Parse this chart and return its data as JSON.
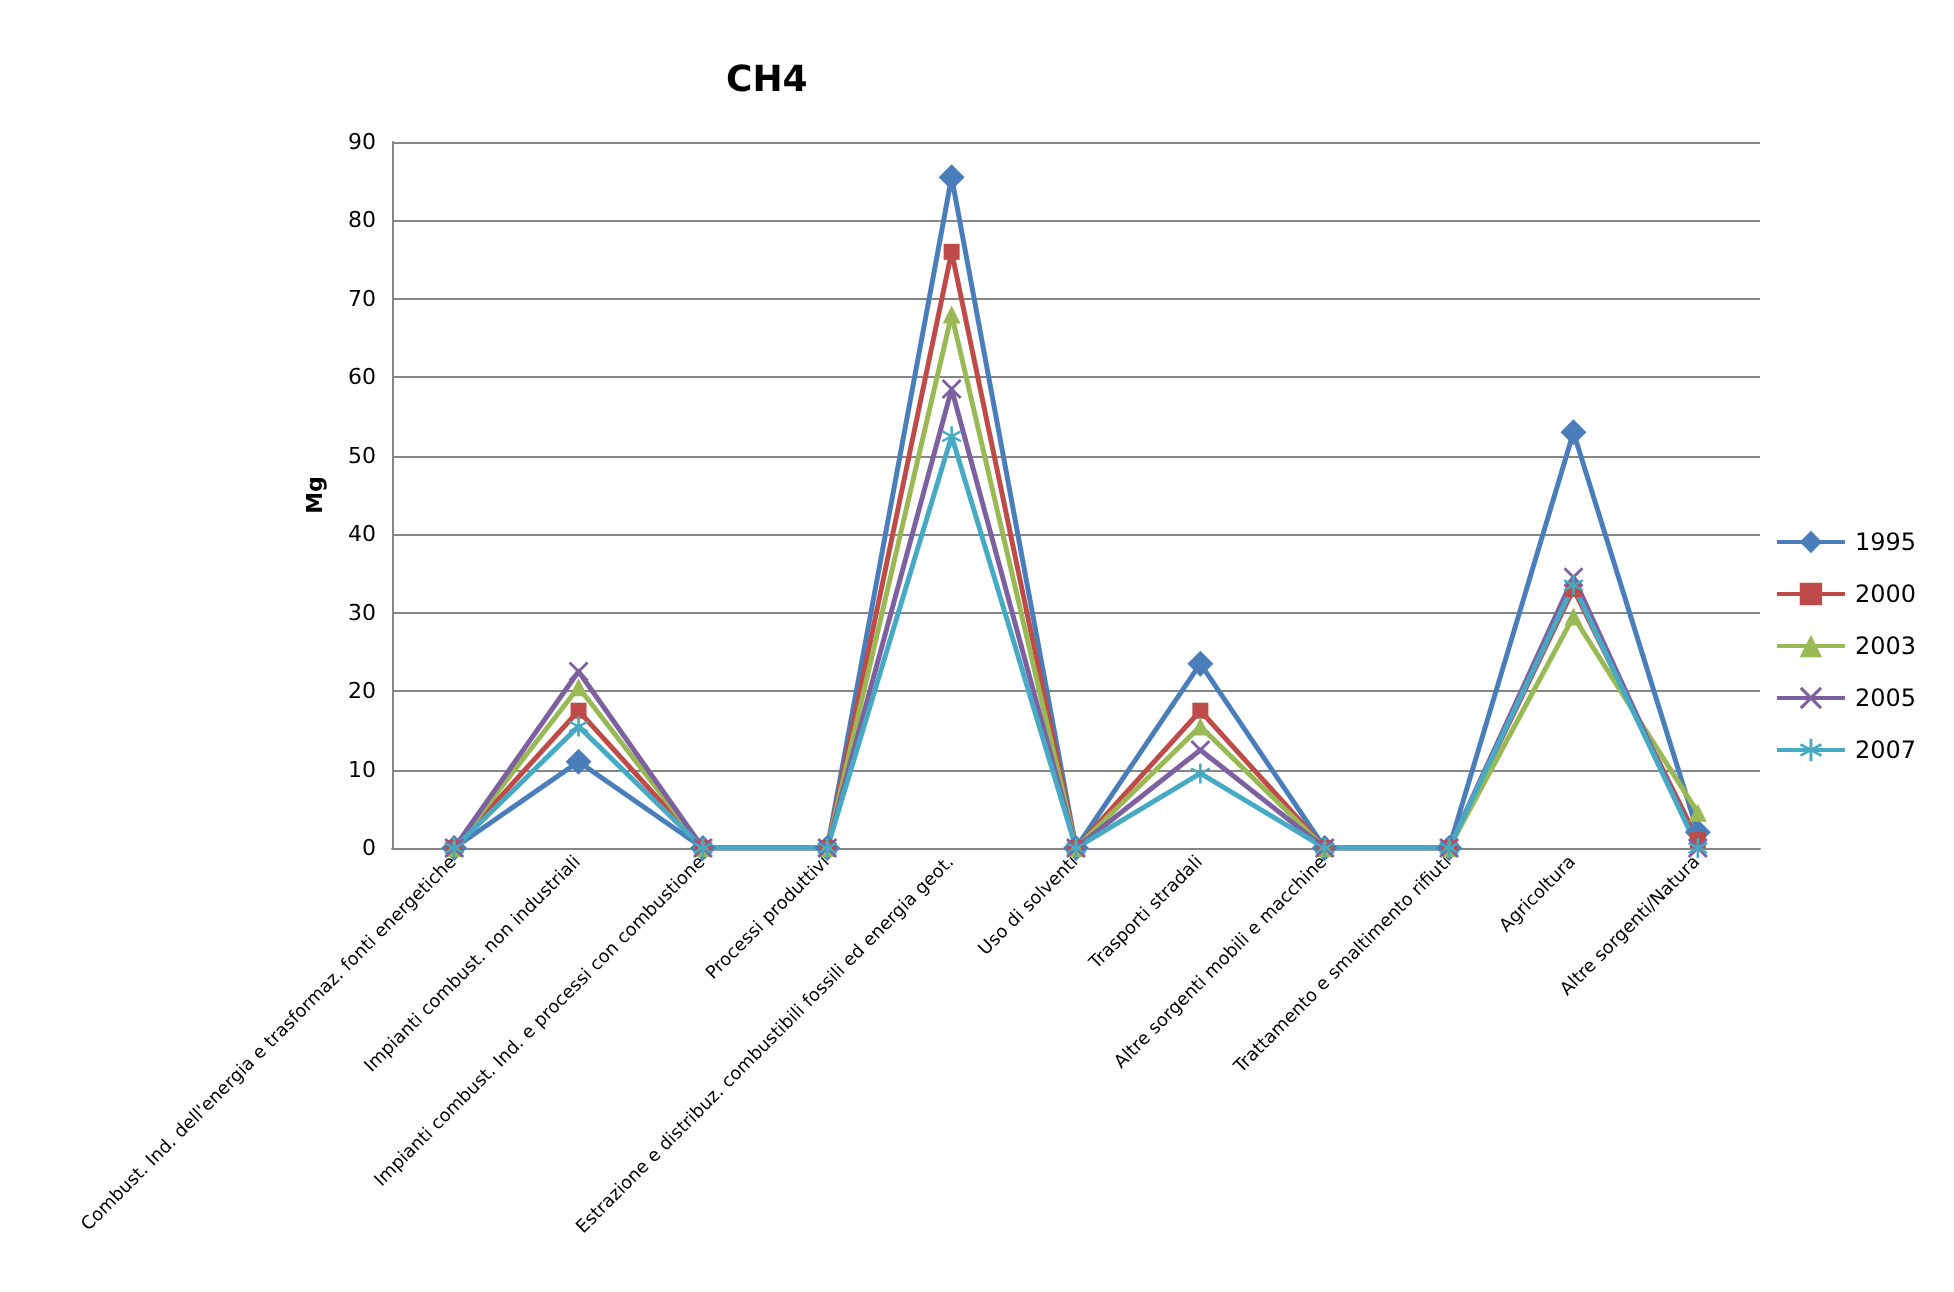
{
  "chart_data": {
    "type": "line",
    "title": "CH4",
    "ylabel": "Mg",
    "categories": [
      "Combust. Ind. dell'energia e trasformaz. fonti energetiche",
      "Impianti combust. non industriali",
      "Impianti combust. Ind. e processi con combustione",
      "Processi produttivi",
      "Estrazione e distribuz. combustibili fossili ed energia geot.",
      "Uso di solventi",
      "Trasporti stradali",
      "Altre sorgenti mobili e macchine",
      "Trattamento e smaltimento rifiuti",
      "Agricoltura",
      "Altre sorgenti/Natura"
    ],
    "series": [
      {
        "name": "1995",
        "color": "#4a7ebb",
        "marker": "diamond",
        "values": [
          0,
          11,
          0,
          0,
          85.5,
          0,
          23.5,
          0,
          0,
          53,
          2
        ]
      },
      {
        "name": "2000",
        "color": "#be4b48",
        "marker": "square",
        "values": [
          0,
          17.5,
          0,
          0,
          76,
          0,
          17.5,
          0,
          0,
          33,
          1
        ]
      },
      {
        "name": "2003",
        "color": "#98b954",
        "marker": "triangle",
        "values": [
          0,
          20.5,
          0,
          0,
          68,
          0,
          15.5,
          0,
          0,
          29.5,
          4.5
        ]
      },
      {
        "name": "2005",
        "color": "#7d60a0",
        "marker": "cross",
        "values": [
          0,
          22.5,
          0,
          0,
          58.5,
          0,
          12.5,
          0,
          0,
          34.5,
          0
        ]
      },
      {
        "name": "2007",
        "color": "#46aac5",
        "marker": "star",
        "values": [
          0,
          15.5,
          0,
          0,
          52.5,
          0,
          9.5,
          0,
          0,
          33.5,
          0
        ]
      }
    ],
    "ylim": [
      0,
      90
    ],
    "yticks": [
      0,
      10,
      20,
      30,
      40,
      50,
      60,
      70,
      80,
      90
    ],
    "grid": "y",
    "legend": "right",
    "line_style": "solid"
  }
}
